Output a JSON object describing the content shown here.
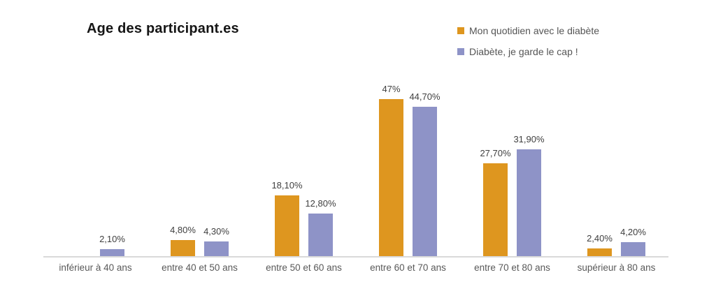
{
  "chart_data": {
    "type": "bar",
    "title": "Age des participant.es",
    "categories": [
      "inférieur à 40 ans",
      "entre 40 et 50 ans",
      "entre 50 et 60 ans",
      "entre 60 et 70 ans",
      "entre 70 et 80 ans",
      "supérieur à 80 ans"
    ],
    "series": [
      {
        "name": "Mon quotidien avec le diabète",
        "color": "#de961f",
        "values": [
          null,
          4.8,
          18.1,
          47,
          27.7,
          2.4
        ],
        "labels": [
          "",
          "4,80%",
          "18,10%",
          "47%",
          "27,70%",
          "2,40%"
        ]
      },
      {
        "name": "Diabète, je garde le cap !",
        "color": "#8e93c7",
        "values": [
          2.1,
          4.3,
          12.8,
          44.7,
          31.9,
          4.2
        ],
        "labels": [
          "2,10%",
          "4,30%",
          "12,80%",
          "44,70%",
          "31,90%",
          "4,20%"
        ]
      }
    ],
    "xlabel": "",
    "ylabel": "",
    "ylim": [
      0,
      50
    ],
    "grid": false,
    "legend_position": "top-right",
    "value_label_color": "#404040",
    "category_label_color": "#595959",
    "axis_line_color": "#d9d9d9"
  }
}
